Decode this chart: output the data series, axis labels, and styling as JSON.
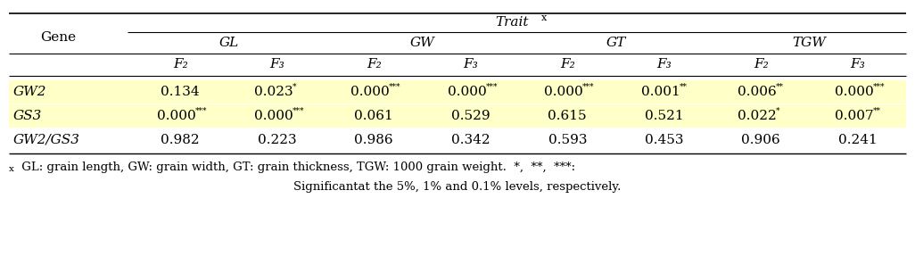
{
  "gene_label": "Gene",
  "col_groups": [
    "GL",
    "GW",
    "GT",
    "TGW"
  ],
  "rows": [
    {
      "gene": "GW2",
      "highlight": true,
      "values": [
        "0.134",
        "0.023*",
        "0.000***",
        "0.000***",
        "0.000***",
        "0.001**",
        "0.006**",
        "0.000***"
      ]
    },
    {
      "gene": "GS3",
      "highlight": true,
      "values": [
        "0.000***",
        "0.000***",
        "0.061",
        "0.529",
        "0.615",
        "0.521",
        "0.022*",
        "0.007**"
      ]
    },
    {
      "gene": "GW2/GS3",
      "highlight": false,
      "values": [
        "0.982",
        "0.223",
        "0.986",
        "0.342",
        "0.593",
        "0.453",
        "0.906",
        "0.241"
      ]
    }
  ],
  "footnote_line1": "x: GL: grain length, GW: grain width, GT: grain thickness, TGW: 1000 grain weight.  *,  **,  ***:",
  "footnote_line2": "Significantat the 5%, 1% and 0.1% levels, respectively.",
  "highlight_color": "#FFFFC8",
  "bg_color": "#FFFFFF",
  "font_size": 11,
  "header_font_size": 11,
  "footnote_font_size": 9.5
}
